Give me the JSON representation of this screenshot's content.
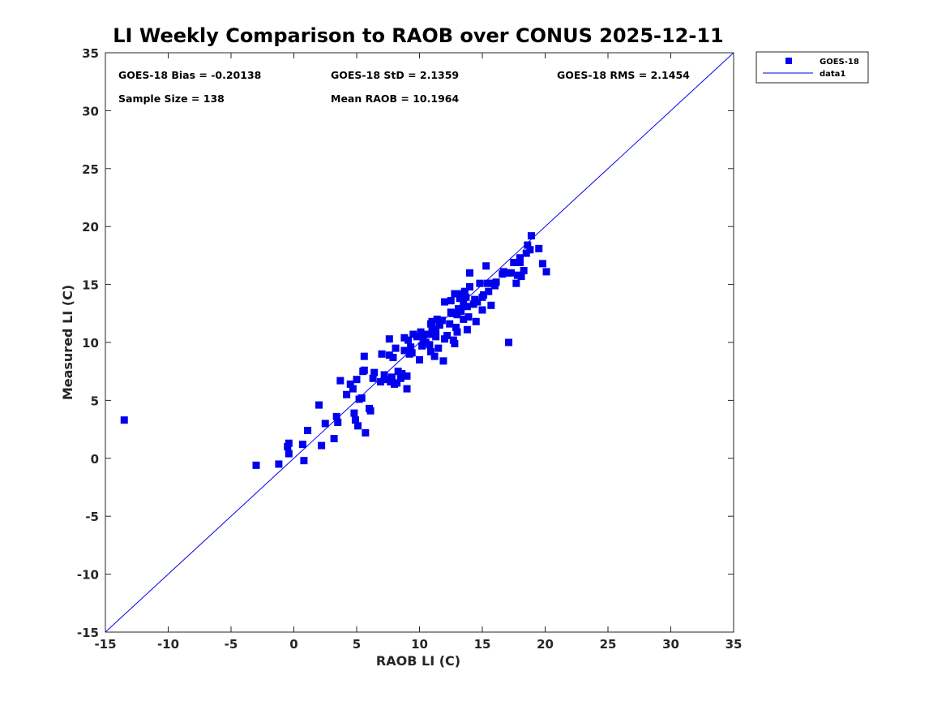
{
  "chart_data": {
    "type": "scatter",
    "title": "LI Weekly Comparison to RAOB over CONUS 2025-12-11",
    "xlabel": "RAOB LI (C)",
    "ylabel": "Measured LI (C)",
    "xlim": [
      -15,
      35
    ],
    "ylim": [
      -15,
      35
    ],
    "xticks": [
      -15,
      -10,
      -5,
      0,
      5,
      10,
      15,
      20,
      25,
      30,
      35
    ],
    "yticks": [
      -15,
      -10,
      -5,
      0,
      5,
      10,
      15,
      20,
      25,
      30,
      35
    ],
    "grid": false,
    "legend_position": "outside-top-right",
    "annotations": {
      "bias": "GOES-18 Bias = -0.20138",
      "std": "GOES-18 StD = 2.1359",
      "rms": "GOES-18 RMS = 2.1454",
      "sample_size": "Sample Size = 138",
      "mean_raob": "Mean RAOB = 10.1964"
    },
    "series": [
      {
        "name": "GOES-18",
        "kind": "scatter",
        "marker": "square",
        "color": "#0000ee",
        "points": [
          [
            -13.5,
            3.3
          ],
          [
            -3.0,
            -0.6
          ],
          [
            -1.2,
            -0.5
          ],
          [
            -0.5,
            1.0
          ],
          [
            -0.4,
            1.3
          ],
          [
            -0.4,
            0.4
          ],
          [
            0.7,
            1.2
          ],
          [
            0.8,
            -0.2
          ],
          [
            1.1,
            2.4
          ],
          [
            2.0,
            4.6
          ],
          [
            2.2,
            1.1
          ],
          [
            2.5,
            3.0
          ],
          [
            3.2,
            1.7
          ],
          [
            3.4,
            3.6
          ],
          [
            3.5,
            3.1
          ],
          [
            3.7,
            6.7
          ],
          [
            4.2,
            5.5
          ],
          [
            4.5,
            6.4
          ],
          [
            4.7,
            6.0
          ],
          [
            4.8,
            3.9
          ],
          [
            4.9,
            3.3
          ],
          [
            5.0,
            6.8
          ],
          [
            5.1,
            2.8
          ],
          [
            5.2,
            5.1
          ],
          [
            5.4,
            5.2
          ],
          [
            5.6,
            8.8
          ],
          [
            5.6,
            7.6
          ],
          [
            5.7,
            2.2
          ],
          [
            6.0,
            4.3
          ],
          [
            6.1,
            4.1
          ],
          [
            6.3,
            6.9
          ],
          [
            6.4,
            7.4
          ],
          [
            6.9,
            6.6
          ],
          [
            7.0,
            9.0
          ],
          [
            7.2,
            7.2
          ],
          [
            7.6,
            10.3
          ],
          [
            7.6,
            8.9
          ],
          [
            7.7,
            6.6
          ],
          [
            7.8,
            7.0
          ],
          [
            7.9,
            8.7
          ],
          [
            8.0,
            6.4
          ],
          [
            8.1,
            9.5
          ],
          [
            8.2,
            6.5
          ],
          [
            8.3,
            7.5
          ],
          [
            8.5,
            6.9
          ],
          [
            8.6,
            7.3
          ],
          [
            8.8,
            9.3
          ],
          [
            8.8,
            10.4
          ],
          [
            9.0,
            6.0
          ],
          [
            9.0,
            7.1
          ],
          [
            9.1,
            10.2
          ],
          [
            9.2,
            9.0
          ],
          [
            9.3,
            9.6
          ],
          [
            9.5,
            10.7
          ],
          [
            9.8,
            10.5
          ],
          [
            10.0,
            8.5
          ],
          [
            10.1,
            10.9
          ],
          [
            10.2,
            9.7
          ],
          [
            10.3,
            10.3
          ],
          [
            10.5,
            10.0
          ],
          [
            10.6,
            10.7
          ],
          [
            10.8,
            9.8
          ],
          [
            10.9,
            9.2
          ],
          [
            11.0,
            11.3
          ],
          [
            11.0,
            11.8
          ],
          [
            11.1,
            10.7
          ],
          [
            11.2,
            8.8
          ],
          [
            11.3,
            10.5
          ],
          [
            11.3,
            11.1
          ],
          [
            11.4,
            12.0
          ],
          [
            11.5,
            9.5
          ],
          [
            11.6,
            11.5
          ],
          [
            11.8,
            11.9
          ],
          [
            11.9,
            8.4
          ],
          [
            12.0,
            13.5
          ],
          [
            12.0,
            10.3
          ],
          [
            12.2,
            10.6
          ],
          [
            12.4,
            11.6
          ],
          [
            12.5,
            13.6
          ],
          [
            12.5,
            12.6
          ],
          [
            12.7,
            10.2
          ],
          [
            12.8,
            9.9
          ],
          [
            12.8,
            14.2
          ],
          [
            12.9,
            11.3
          ],
          [
            13.0,
            10.9
          ],
          [
            13.0,
            12.4
          ],
          [
            13.1,
            12.9
          ],
          [
            13.2,
            13.8
          ],
          [
            13.3,
            14.2
          ],
          [
            13.3,
            12.7
          ],
          [
            13.5,
            13.3
          ],
          [
            13.5,
            12.0
          ],
          [
            13.6,
            14.4
          ],
          [
            13.7,
            13.9
          ],
          [
            13.8,
            11.1
          ],
          [
            13.8,
            13.1
          ],
          [
            13.9,
            12.2
          ],
          [
            14.0,
            16.0
          ],
          [
            14.0,
            14.8
          ],
          [
            14.3,
            13.3
          ],
          [
            14.4,
            13.7
          ],
          [
            14.5,
            11.8
          ],
          [
            14.8,
            15.1
          ],
          [
            15.0,
            12.8
          ],
          [
            15.0,
            13.9
          ],
          [
            15.1,
            14.1
          ],
          [
            15.3,
            16.6
          ],
          [
            15.4,
            15.1
          ],
          [
            15.5,
            14.4
          ],
          [
            15.7,
            13.2
          ],
          [
            15.7,
            15.1
          ],
          [
            16.0,
            14.9
          ],
          [
            16.6,
            15.9
          ],
          [
            16.7,
            16.1
          ],
          [
            17.0,
            16.0
          ],
          [
            17.1,
            10.0
          ],
          [
            17.3,
            16.0
          ],
          [
            17.5,
            16.9
          ],
          [
            17.7,
            15.1
          ],
          [
            17.8,
            15.8
          ],
          [
            18.0,
            17.3
          ],
          [
            18.0,
            16.9
          ],
          [
            18.1,
            15.7
          ],
          [
            18.3,
            16.2
          ],
          [
            18.5,
            17.7
          ],
          [
            18.6,
            18.4
          ],
          [
            18.8,
            18.0
          ],
          [
            18.9,
            19.2
          ],
          [
            19.5,
            18.1
          ],
          [
            19.8,
            16.8
          ],
          [
            20.1,
            16.1
          ],
          [
            5.5,
            7.5
          ],
          [
            9.4,
            9.1
          ],
          [
            10.9,
            11.6
          ],
          [
            12.6,
            12.5
          ],
          [
            14.6,
            13.5
          ],
          [
            16.1,
            15.2
          ],
          [
            7.4,
            6.8
          ]
        ]
      },
      {
        "name": "data1",
        "kind": "line",
        "color": "#0000ee",
        "x": [
          -15,
          35
        ],
        "y": [
          -15,
          35
        ]
      }
    ]
  }
}
